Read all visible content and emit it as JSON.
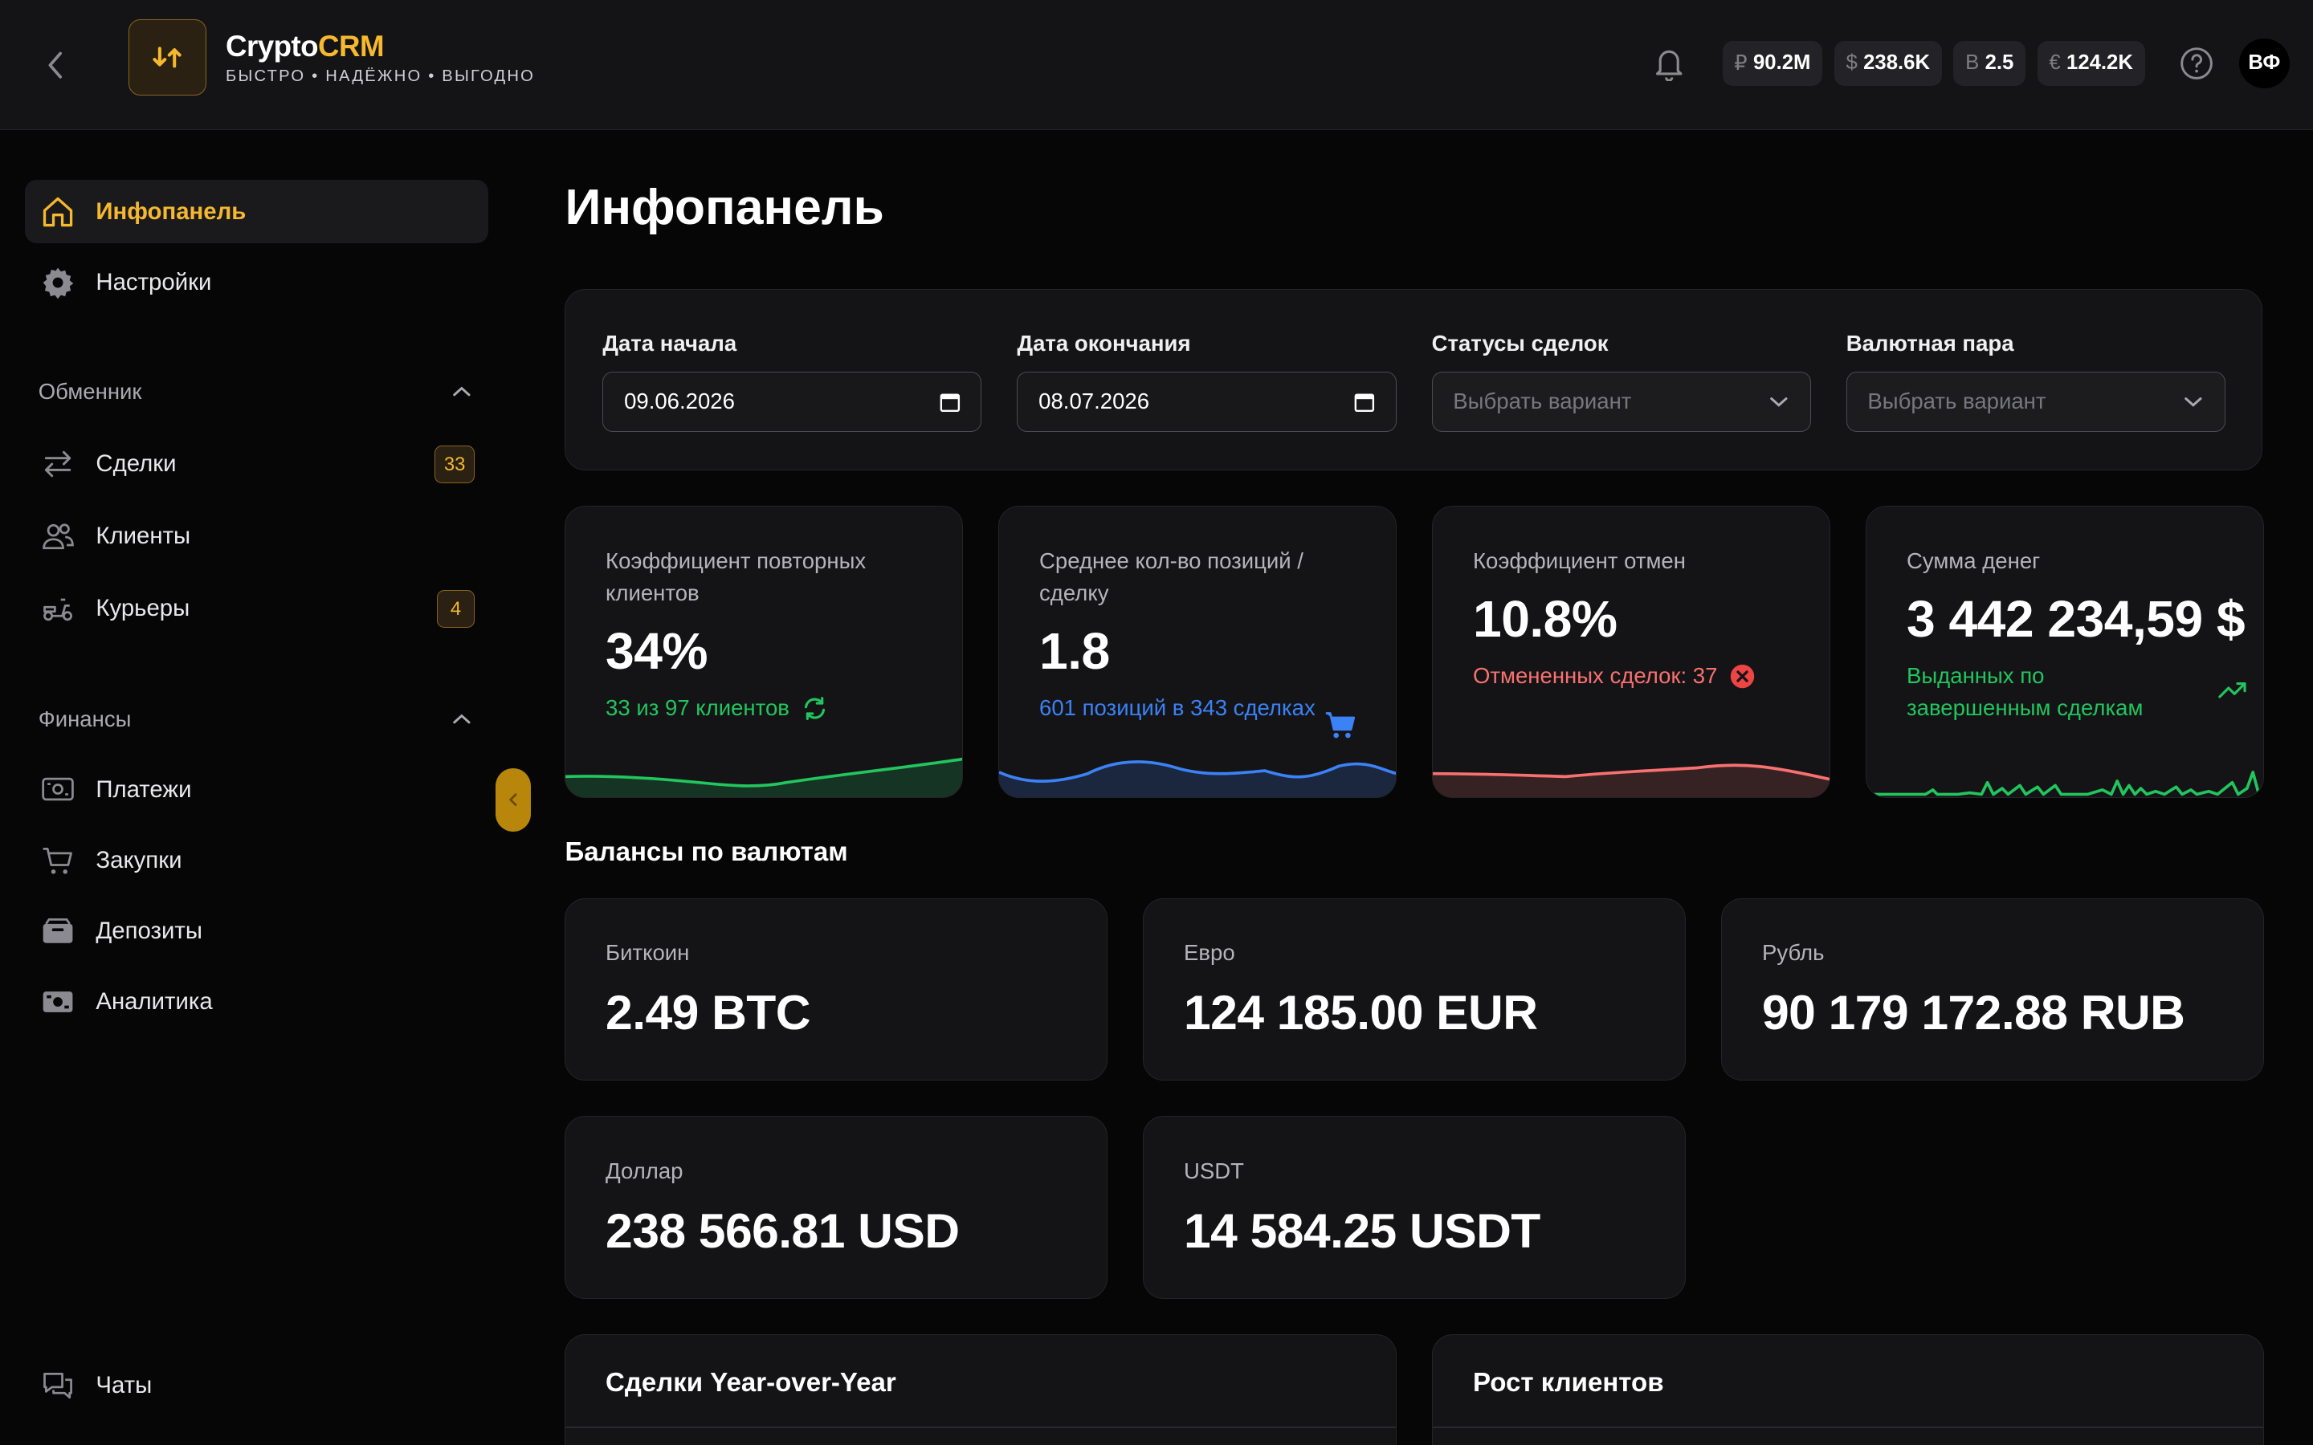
{
  "brand": {
    "name_part1": "Crypto",
    "name_part2": "CRM",
    "tagline": "БЫСТРО • НАДЁЖНО • ВЫГОДНО"
  },
  "header": {
    "balances": [
      {
        "symbol": "₽",
        "value": "90.2M"
      },
      {
        "symbol": "$",
        "value": "238.6K"
      },
      {
        "symbol": "B",
        "value": "2.5"
      },
      {
        "symbol": "€",
        "value": "124.2K"
      }
    ],
    "avatar_initials": "ВФ"
  },
  "sidebar": {
    "top_items": [
      {
        "label": "Инфопанель",
        "icon": "home-icon",
        "active": true
      },
      {
        "label": "Настройки",
        "icon": "gear-icon"
      }
    ],
    "exchanger_title": "Обменник",
    "exchanger_items": [
      {
        "label": "Сделки",
        "icon": "swap-icon",
        "badge": "33"
      },
      {
        "label": "Клиенты",
        "icon": "users-icon"
      },
      {
        "label": "Курьеры",
        "icon": "scooter-icon",
        "badge": "4"
      }
    ],
    "finance_title": "Финансы",
    "finance_items": [
      {
        "label": "Платежи",
        "icon": "payment-icon"
      },
      {
        "label": "Закупки",
        "icon": "cart-icon"
      },
      {
        "label": "Депозиты",
        "icon": "wallet-icon"
      },
      {
        "label": "Аналитика",
        "icon": "analytics-icon"
      }
    ],
    "chats_label": "Чаты"
  },
  "main": {
    "title": "Инфопанель",
    "filters": {
      "start_label": "Дата начала",
      "start_value": "09.06.2026",
      "end_label": "Дата окончания",
      "end_value": "08.07.2026",
      "status_label": "Статусы сделок",
      "status_placeholder": "Выбрать вариант",
      "pair_label": "Валютная пара",
      "pair_placeholder": "Выбрать вариант"
    },
    "stats": [
      {
        "label": "Коэффициент повторных клиентов",
        "value": "34%",
        "sub": "33 из 97 клиентов",
        "color": "#22c55e"
      },
      {
        "label": "Среднее кол-во позиций / сделку",
        "value": "1.8",
        "sub": "601 позиций в 343 сделках",
        "color": "#3b82f6"
      },
      {
        "label": "Коэффициент отмен",
        "value": "10.8%",
        "sub": "Отмененных сделок: 37",
        "color": "#f87171"
      },
      {
        "label": "Сумма денег",
        "value": "3 442 234,59 $",
        "sub": "Выданных по завершенным сделкам",
        "color": "#22c55e"
      }
    ],
    "balances_title": "Балансы по валютам",
    "balances": [
      {
        "label": "Биткоин",
        "value": "2.49 BTC"
      },
      {
        "label": "Евро",
        "value": "124 185.00 EUR"
      },
      {
        "label": "Рубль",
        "value": "90 179 172.88 RUB"
      },
      {
        "label": "Доллар",
        "value": "238 566.81 USD"
      },
      {
        "label": "USDT",
        "value": "14 584.25 USDT"
      }
    ],
    "panels": [
      {
        "title": "Сделки Year-over-Year"
      },
      {
        "title": "Рост клиентов"
      }
    ]
  },
  "colors": {
    "accent": "#f5b82e",
    "green": "#22c55e",
    "blue": "#3b82f6",
    "red": "#f87171"
  }
}
